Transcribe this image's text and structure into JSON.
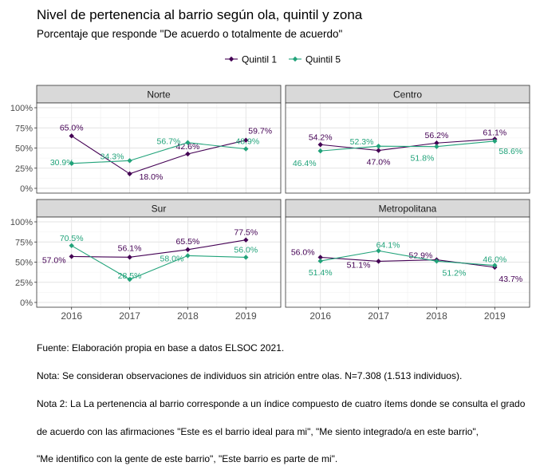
{
  "chart_data": {
    "type": "line",
    "title": "Nivel de pertenencia al barrio según ola, quintil y zona",
    "subtitle": "Porcentaje que responde \"De acuerdo o totalmente de acuerdo\"",
    "legend_position": "top",
    "x": [
      "2016",
      "2017",
      "2018",
      "2019"
    ],
    "y_ticks": [
      "0%",
      "25%",
      "50%",
      "75%",
      "100%"
    ],
    "ylim": [
      0,
      100
    ],
    "grid": true,
    "series_styles": [
      {
        "name": "Quintil 1",
        "color": "#440154",
        "marker": "diamond"
      },
      {
        "name": "Quintil 5",
        "color": "#21a37a",
        "marker": "diamond"
      }
    ],
    "panels": [
      {
        "label": "Norte",
        "series": [
          {
            "name": "Quintil 1",
            "values": [
              65.0,
              18.0,
              42.6,
              59.7
            ],
            "labels": [
              "65.0%",
              "18.0%",
              "42.6%",
              "59.7%"
            ]
          },
          {
            "name": "Quintil 5",
            "values": [
              30.9,
              34.3,
              56.7,
              48.9
            ],
            "labels": [
              "30.9%",
              "34.3%",
              "56.7%",
              "48.9%"
            ]
          }
        ]
      },
      {
        "label": "Centro",
        "series": [
          {
            "name": "Quintil 1",
            "values": [
              54.2,
              47.0,
              56.2,
              61.1
            ],
            "labels": [
              "54.2%",
              "47.0%",
              "56.2%",
              "61.1%"
            ]
          },
          {
            "name": "Quintil 5",
            "values": [
              46.4,
              52.3,
              51.8,
              58.6
            ],
            "labels": [
              "46.4%",
              "52.3%",
              "51.8%",
              "58.6%"
            ]
          }
        ]
      },
      {
        "label": "Sur",
        "series": [
          {
            "name": "Quintil 1",
            "values": [
              57.0,
              56.1,
              65.5,
              77.5
            ],
            "labels": [
              "57.0%",
              "56.1%",
              "65.5%",
              "77.5%"
            ]
          },
          {
            "name": "Quintil 5",
            "values": [
              70.5,
              28.5,
              58.0,
              56.0
            ],
            "labels": [
              "70.5%",
              "28.5%",
              "58.0%",
              "56.0%"
            ]
          }
        ]
      },
      {
        "label": "Metropolitana",
        "series": [
          {
            "name": "Quintil 1",
            "values": [
              56.0,
              51.1,
              52.9,
              43.7
            ],
            "labels": [
              "56.0%",
              "51.1%",
              "52.9%",
              "43.7%"
            ]
          },
          {
            "name": "Quintil 5",
            "values": [
              51.4,
              64.1,
              51.2,
              46.0
            ],
            "labels": [
              "51.4%",
              "64.1%",
              "51.2%",
              "46.0%"
            ]
          }
        ]
      }
    ]
  },
  "caption": [
    "Fuente: Elaboración propia en base a datos ELSOC 2021.",
    "Nota: Se consideran observaciones de individuos sin atrición entre olas. N=7.308 (1.513 individuos).",
    "Nota 2: La La pertenencia al barrio corresponde a un índice compuesto de cuatro ítems donde se consulta el grado",
    "de acuerdo con las afirmaciones \"Este es el barrio ideal para mi\", \"Me siento integrado/a en este barrio\",",
    "\"Me identifico con la gente de este barrio\", \"Este barrio es parte de mi\"."
  ]
}
